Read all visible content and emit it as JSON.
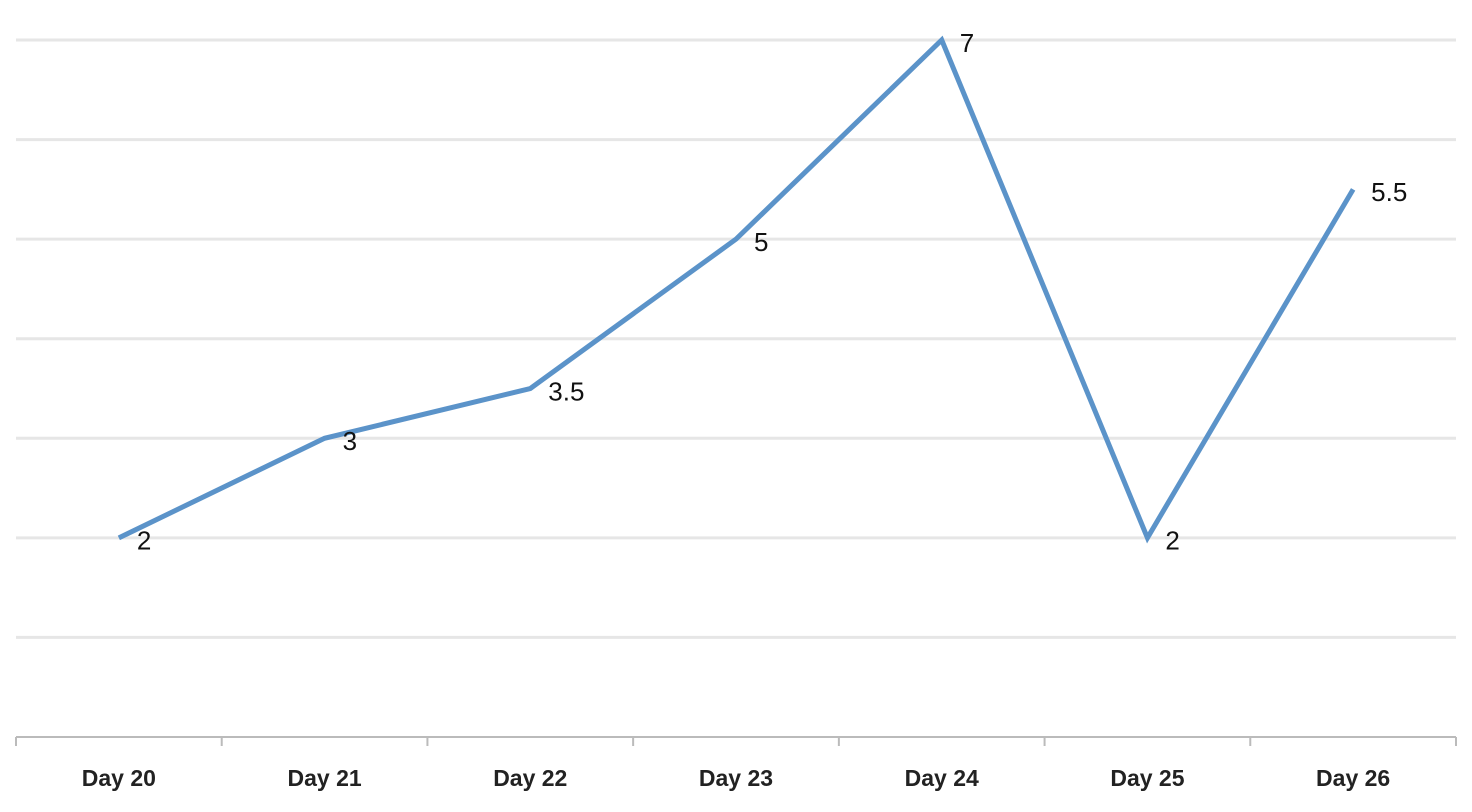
{
  "chart_data": {
    "type": "line",
    "categories": [
      "Day 20",
      "Day 21",
      "Day 22",
      "Day 23",
      "Day 24",
      "Day 25",
      "Day 26"
    ],
    "values": [
      2,
      3,
      3.5,
      5,
      7,
      2,
      5.5
    ],
    "color": "#5b93c9",
    "ylim": [
      0,
      7
    ],
    "yticks": [
      0,
      1,
      2,
      3,
      4,
      5,
      6,
      7
    ],
    "grid": true,
    "data_labels": true
  }
}
